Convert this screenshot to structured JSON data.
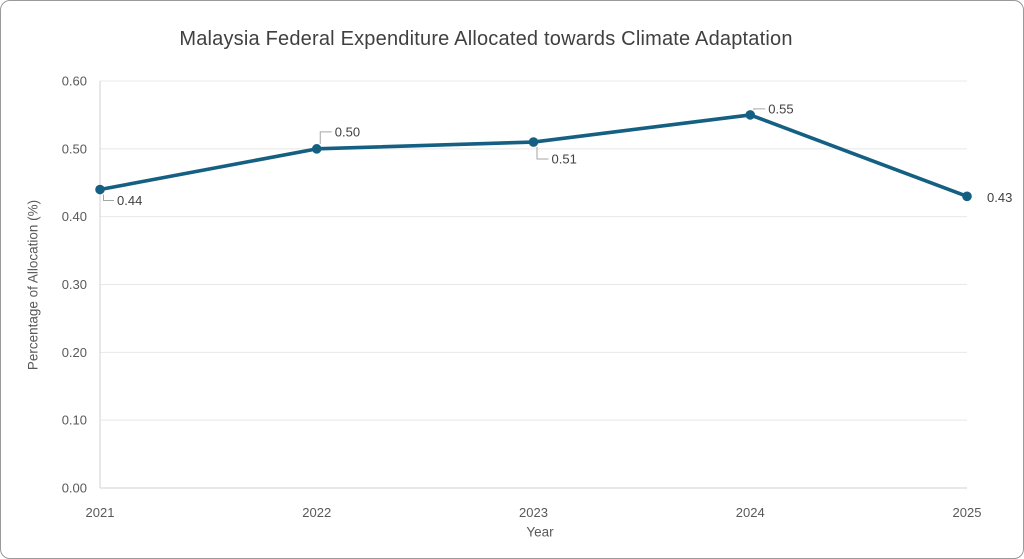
{
  "chart_data": {
    "type": "line",
    "title": "Malaysia Federal Expenditure Allocated towards Climate Adaptation",
    "xlabel": "Year",
    "ylabel": "Percentage of Allocation (%)",
    "categories": [
      "2021",
      "2022",
      "2023",
      "2024",
      "2025"
    ],
    "series": [
      {
        "name": "Percentage of Allocation",
        "values": [
          0.44,
          0.5,
          0.51,
          0.55,
          0.43
        ]
      }
    ],
    "data_labels": [
      "0.44",
      "0.50",
      "0.51",
      "0.55",
      "0.43"
    ],
    "label_placements": [
      "below-right",
      "above-right",
      "below-right",
      "above-right",
      "right"
    ],
    "ylim": [
      0,
      0.6
    ],
    "yticks": [
      "0.00",
      "0.10",
      "0.20",
      "0.30",
      "0.40",
      "0.50",
      "0.60"
    ],
    "grid": "horizontal",
    "legend": "none",
    "colors": {
      "series": "#156082",
      "grid": "#e8e8e8",
      "axis": "#d2d2d2",
      "tick_label": "#595959",
      "data_label": "#404040",
      "title": "#404040",
      "axis_title": "#595959",
      "leader": "#a6a6a6",
      "card_border": "#9a9a9a",
      "background": "#ffffff"
    }
  }
}
